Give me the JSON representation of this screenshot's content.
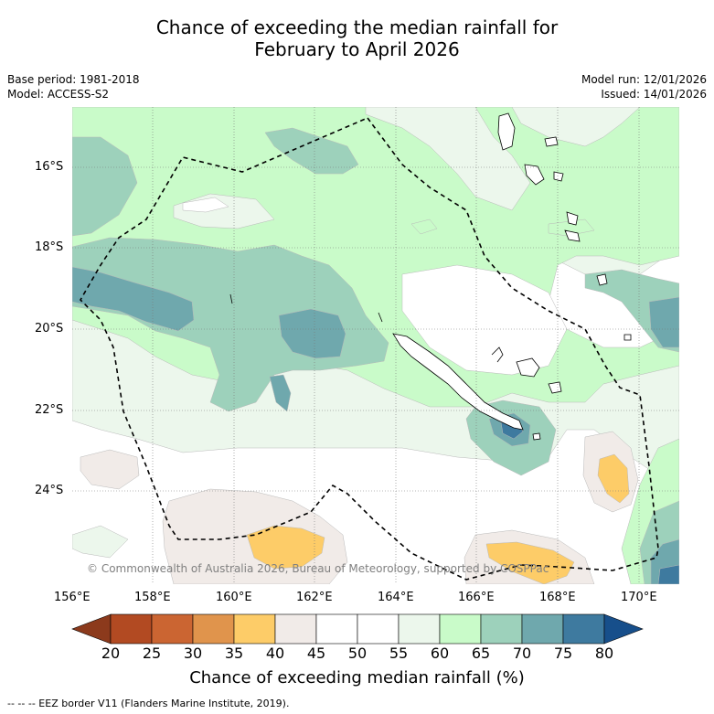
{
  "title": {
    "line1": "Chance of exceeding the median rainfall for",
    "line2": "February to April 2026"
  },
  "meta": {
    "base_period": "Base period: 1981-2018",
    "model": "Model: ACCESS-S2",
    "model_run": "Model run: 12/01/2026",
    "issued": "Issued: 14/01/2026"
  },
  "map": {
    "lat_labels": [
      "16°S",
      "18°S",
      "20°S",
      "22°S",
      "24°S"
    ],
    "lon_labels": [
      "156°E",
      "158°E",
      "160°E",
      "162°E",
      "164°E",
      "166°E",
      "168°E",
      "170°E"
    ],
    "copyright": "© Commonwealth of Australia 2026, Bureau of Meteorology, supported by COSPPac"
  },
  "colorbar": {
    "ticks": [
      "20",
      "25",
      "30",
      "35",
      "40",
      "45",
      "50",
      "55",
      "60",
      "65",
      "70",
      "75",
      "80"
    ],
    "colors": [
      "#b24a22",
      "#cb6532",
      "#e0944c",
      "#fdcc68",
      "#f1ebe8",
      "#ffffff",
      "#ffffff",
      "#ecf7ec",
      "#c9fbc9",
      "#9dd1bb",
      "#6fa8ad",
      "#3e7a9f"
    ],
    "below_color": "#8c3a1c",
    "above_color": "#174f8b",
    "title": "Chance of exceeding median rainfall (%)"
  },
  "legend": {
    "eez_text": "--  --  -- EEZ border V11 (Flanders Marine Institute, 2019)."
  }
}
